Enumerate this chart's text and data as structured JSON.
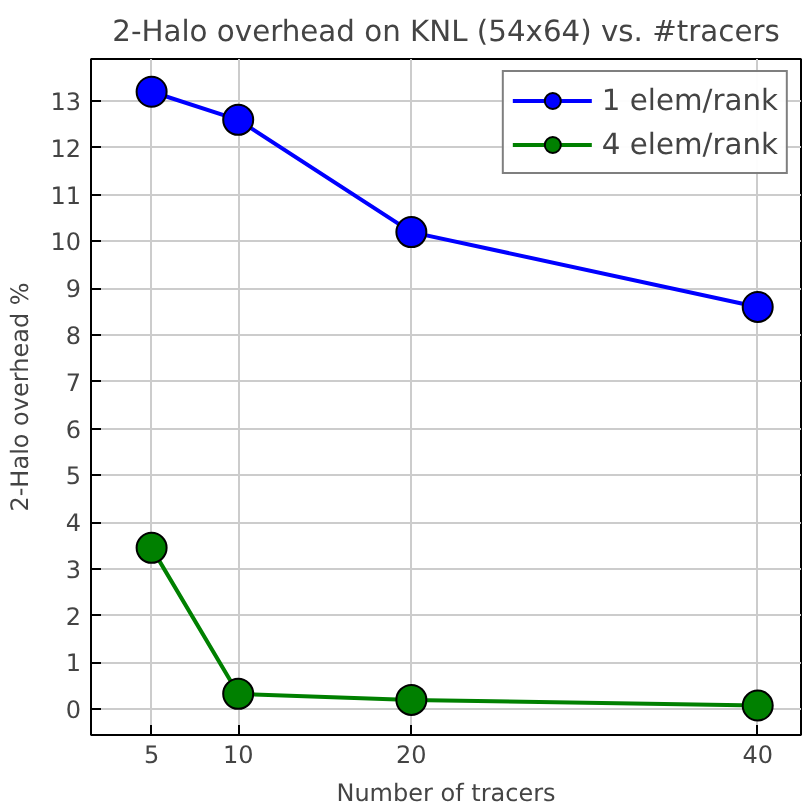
{
  "chart_data": {
    "type": "line",
    "title": "2-Halo overhead on KNL (54x64) vs. #tracers",
    "xlabel": "Number of tracers",
    "ylabel": "2-Halo overhead %",
    "x": [
      5,
      10,
      20,
      40
    ],
    "series": [
      {
        "name": "1 elem/rank",
        "color": "#0000ff",
        "values": [
          13.2,
          12.6,
          10.2,
          8.6
        ]
      },
      {
        "name": "4 elem/rank",
        "color": "#008000",
        "values": [
          3.45,
          0.33,
          0.2,
          0.08
        ]
      }
    ],
    "xlim": [
      1.5,
      42.5
    ],
    "xticks": [
      5,
      10,
      20,
      40
    ],
    "ylim": [
      -0.55,
      13.9
    ],
    "yticks": [
      0,
      1,
      2,
      3,
      4,
      5,
      6,
      7,
      8,
      9,
      10,
      11,
      12,
      13
    ],
    "grid": true,
    "legend": "top right",
    "marker": "circle",
    "line_style": "solid"
  }
}
